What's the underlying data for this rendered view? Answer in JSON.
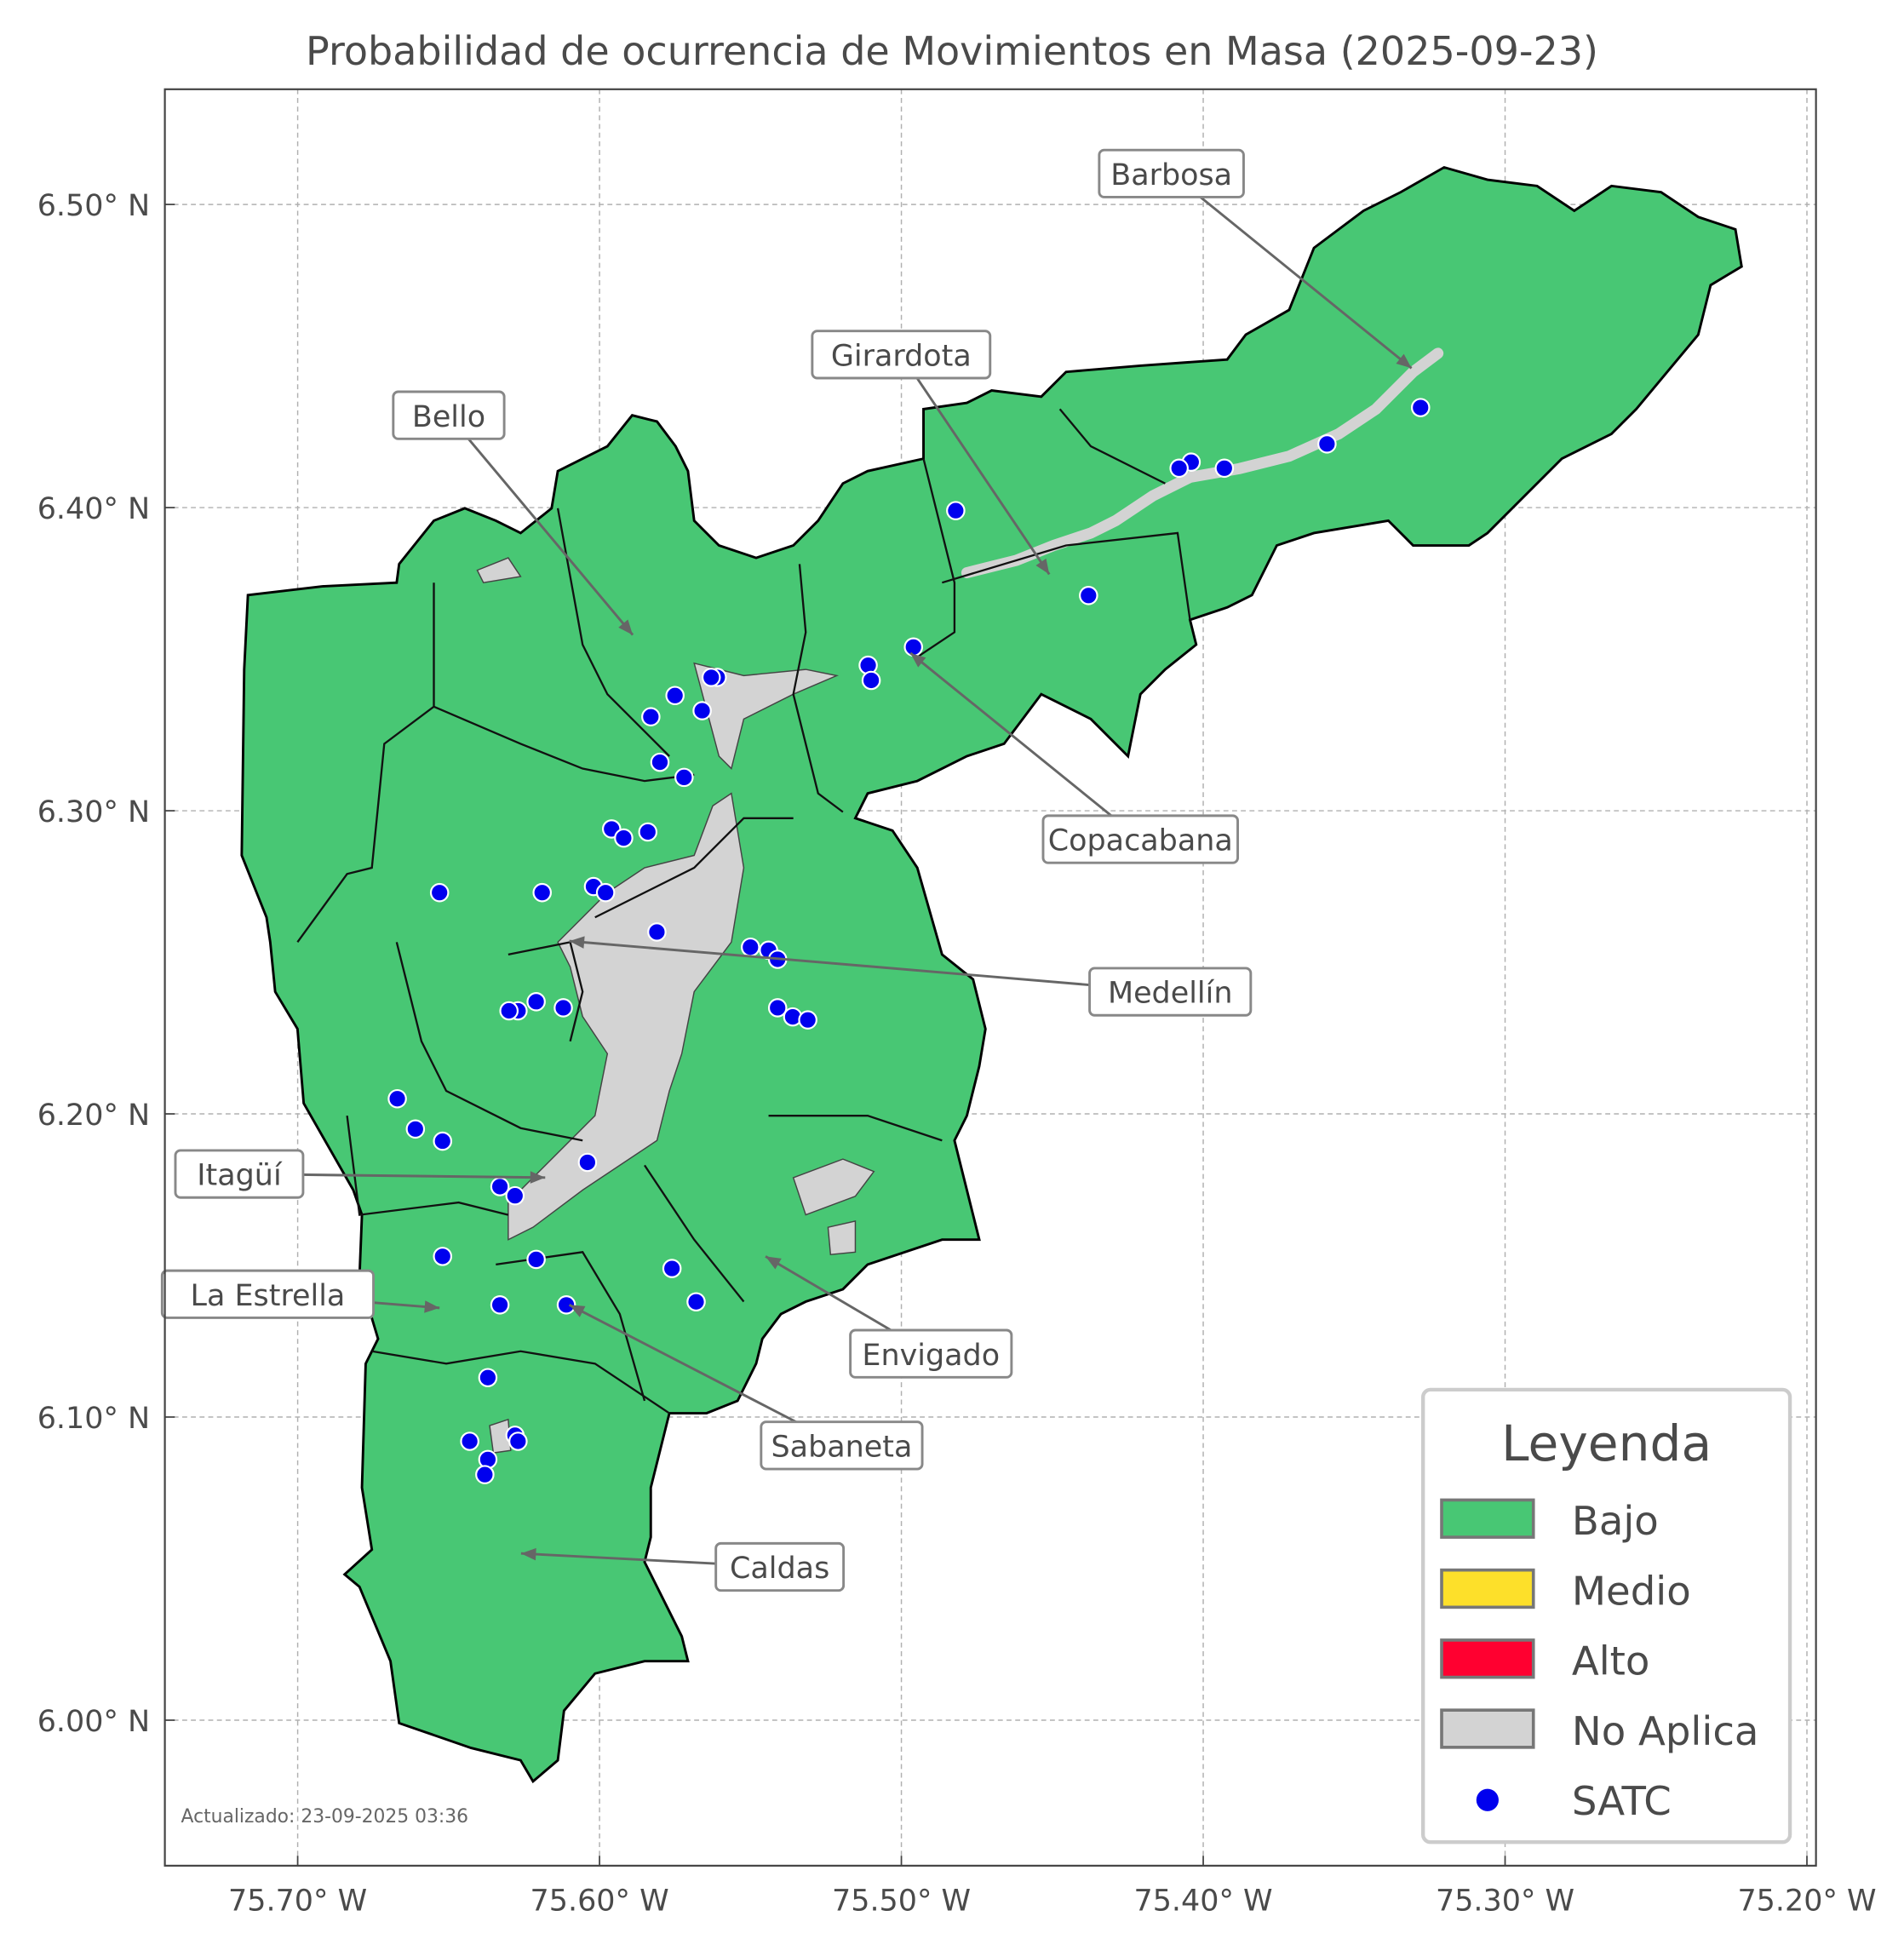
{
  "chart_data": {
    "type": "map-scatter",
    "title": "Probabilidad de ocurrencia de Movimientos en Masa (2025-09-23)",
    "xlim": [
      -75.744,
      -75.197
    ],
    "ylim": [
      5.952,
      6.538
    ],
    "grid": true,
    "x_ticks": [
      {
        "value": -75.7,
        "label": "75.70° W"
      },
      {
        "value": -75.6,
        "label": "75.60° W"
      },
      {
        "value": -75.5,
        "label": "75.50° W"
      },
      {
        "value": -75.4,
        "label": "75.40° W"
      },
      {
        "value": -75.3,
        "label": "75.30° W"
      },
      {
        "value": -75.2,
        "label": "75.20° W"
      }
    ],
    "y_ticks": [
      {
        "value": 6.5,
        "label": "6.50° N"
      },
      {
        "value": 6.4,
        "label": "6.40° N"
      },
      {
        "value": 6.3,
        "label": "6.30° N"
      },
      {
        "value": 6.2,
        "label": "6.20° N"
      },
      {
        "value": 6.1,
        "label": "6.10° N"
      },
      {
        "value": 6.0,
        "label": "6.00° N"
      }
    ],
    "legend": {
      "title": "Leyenda",
      "placement": "lower-right",
      "items": [
        {
          "label": "Bajo",
          "color": "#48c774",
          "kind": "patch"
        },
        {
          "label": "Medio",
          "color": "#fde02a",
          "kind": "patch"
        },
        {
          "label": "Alto",
          "color": "#ff0030",
          "kind": "patch"
        },
        {
          "label": "No Aplica",
          "color": "#d3d3d3",
          "kind": "patch"
        },
        {
          "label": "SATC",
          "color": "#0000ee",
          "kind": "point"
        }
      ]
    },
    "region_level": "Bajo",
    "annotations": [
      {
        "label": "Barbosa",
        "lon": -75.331,
        "lat": 6.446
      },
      {
        "label": "Girardota",
        "lon": -75.451,
        "lat": 6.378
      },
      {
        "label": "Bello",
        "lon": -75.589,
        "lat": 6.358
      },
      {
        "label": "Copacabana",
        "lon": -75.497,
        "lat": 6.352
      },
      {
        "label": "Medellín",
        "lon": -75.61,
        "lat": 6.257
      },
      {
        "label": "Itagüí",
        "lon": -75.618,
        "lat": 6.179
      },
      {
        "label": "La Estrella",
        "lon": -75.653,
        "lat": 6.136
      },
      {
        "label": "Envigado",
        "lon": -75.545,
        "lat": 6.153
      },
      {
        "label": "Sabaneta",
        "lon": -75.61,
        "lat": 6.137
      },
      {
        "label": "Caldas",
        "lon": -75.626,
        "lat": 6.055
      }
    ],
    "satc_points": [
      [
        -75.328,
        6.433
      ],
      [
        -75.359,
        6.421
      ],
      [
        -75.393,
        6.413
      ],
      [
        -75.404,
        6.415
      ],
      [
        -75.408,
        6.413
      ],
      [
        -75.482,
        6.399
      ],
      [
        -75.438,
        6.371
      ],
      [
        -75.496,
        6.354
      ],
      [
        -75.511,
        6.348
      ],
      [
        -75.51,
        6.343
      ],
      [
        -75.561,
        6.344
      ],
      [
        -75.563,
        6.344
      ],
      [
        -75.575,
        6.338
      ],
      [
        -75.566,
        6.333
      ],
      [
        -75.583,
        6.331
      ],
      [
        -75.58,
        6.316
      ],
      [
        -75.572,
        6.311
      ],
      [
        -75.596,
        6.294
      ],
      [
        -75.592,
        6.291
      ],
      [
        -75.584,
        6.293
      ],
      [
        -75.619,
        6.273
      ],
      [
        -75.653,
        6.273
      ],
      [
        -75.602,
        6.275
      ],
      [
        -75.598,
        6.273
      ],
      [
        -75.581,
        6.26
      ],
      [
        -75.55,
        6.255
      ],
      [
        -75.544,
        6.254
      ],
      [
        -75.541,
        6.251
      ],
      [
        -75.541,
        6.235
      ],
      [
        -75.536,
        6.232
      ],
      [
        -75.531,
        6.231
      ],
      [
        -75.621,
        6.237
      ],
      [
        -75.612,
        6.235
      ],
      [
        -75.627,
        6.234
      ],
      [
        -75.63,
        6.234
      ],
      [
        -75.667,
        6.205
      ],
      [
        -75.661,
        6.195
      ],
      [
        -75.652,
        6.191
      ],
      [
        -75.604,
        6.184
      ],
      [
        -75.633,
        6.176
      ],
      [
        -75.628,
        6.173
      ],
      [
        -75.652,
        6.153
      ],
      [
        -75.621,
        6.152
      ],
      [
        -75.576,
        6.149
      ],
      [
        -75.568,
        6.138
      ],
      [
        -75.611,
        6.137
      ],
      [
        -75.633,
        6.137
      ],
      [
        -75.637,
        6.113
      ],
      [
        -75.643,
        6.092
      ],
      [
        -75.628,
        6.094
      ],
      [
        -75.627,
        6.092
      ],
      [
        -75.637,
        6.086
      ],
      [
        -75.638,
        6.081
      ]
    ]
  },
  "footer": {
    "updated": "Actualizado: 23-09-2025 03:36"
  }
}
